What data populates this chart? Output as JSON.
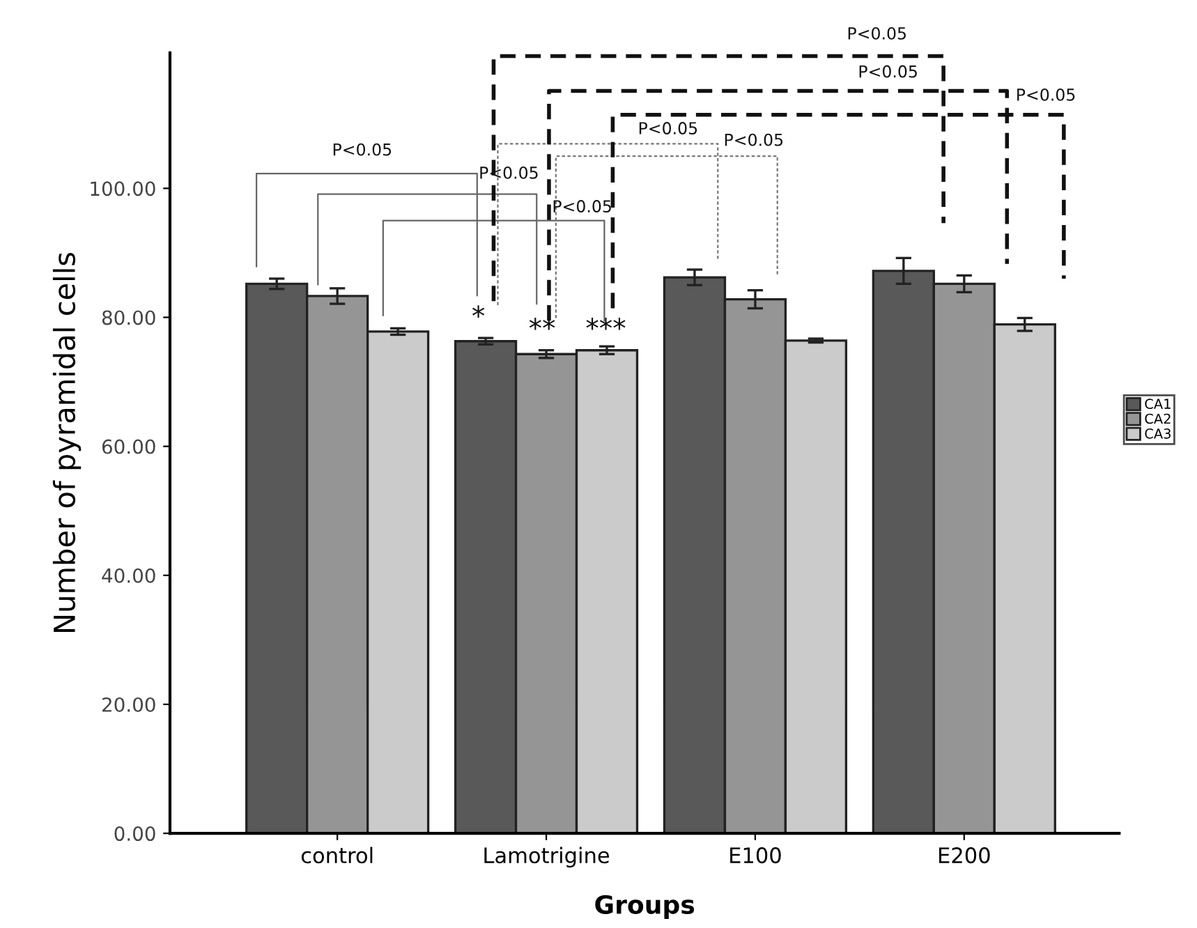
{
  "chart_data": {
    "type": "bar",
    "xlabel": "Groups",
    "ylabel": "Number of pyramidal cells",
    "categories": [
      "control",
      "Lamotrigine",
      "E100",
      "E200"
    ],
    "series": [
      {
        "name": "CA1",
        "color": "#595959",
        "values": [
          85.2,
          76.3,
          86.2,
          87.2
        ],
        "errors": [
          0.8,
          0.5,
          1.2,
          2.0
        ]
      },
      {
        "name": "CA2",
        "color": "#959595",
        "values": [
          83.3,
          74.3,
          82.8,
          85.2
        ],
        "errors": [
          1.2,
          0.6,
          1.4,
          1.3
        ]
      },
      {
        "name": "CA3",
        "color": "#cbcbcb",
        "values": [
          77.8,
          74.9,
          76.4,
          78.9
        ],
        "errors": [
          0.5,
          0.6,
          0.3,
          1.0
        ]
      }
    ],
    "ylim": [
      0,
      121
    ],
    "yticks": [
      {
        "value": 0,
        "label": "0.00"
      },
      {
        "value": 20,
        "label": "20.00"
      },
      {
        "value": 40,
        "label": "40.00"
      },
      {
        "value": 60,
        "label": "60.00"
      },
      {
        "value": 80,
        "label": "80.00"
      },
      {
        "value": 100,
        "label": "100.00"
      }
    ],
    "annotations": [
      "P<0.05",
      "P<0.05",
      "P<0.05",
      "P<0.05",
      "P<0.05",
      "P<0.05",
      "P<0.05",
      "P<0.05",
      "*",
      "**",
      "***"
    ],
    "legend": "right",
    "grid": false
  }
}
